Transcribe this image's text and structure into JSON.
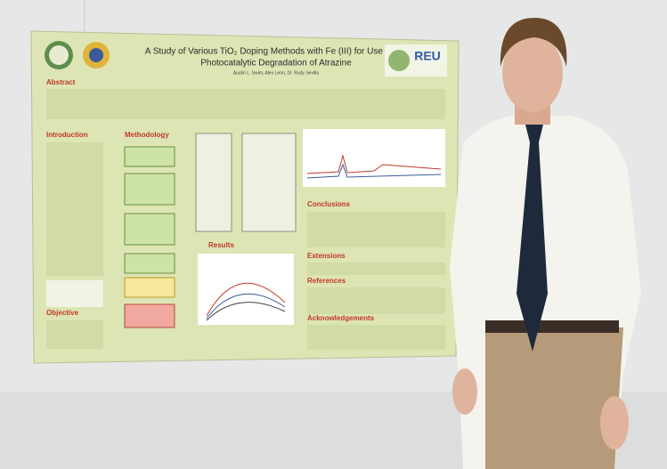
{
  "poster": {
    "title": [
      "A Study of Various TiO₂ Doping Methods with Fe (III) for Use in the",
      "Photocatalytic Degradation of Atrazine"
    ],
    "authors": "Austin L. Swim, Alex Leon, Dr. Rudy Sevilla",
    "logo": "REU",
    "sections": [
      "Abstract",
      "Introduction",
      "Methodology",
      "Results",
      "Conclusions",
      "Extensions",
      "References",
      "Acknowledgements",
      "Objective"
    ]
  }
}
